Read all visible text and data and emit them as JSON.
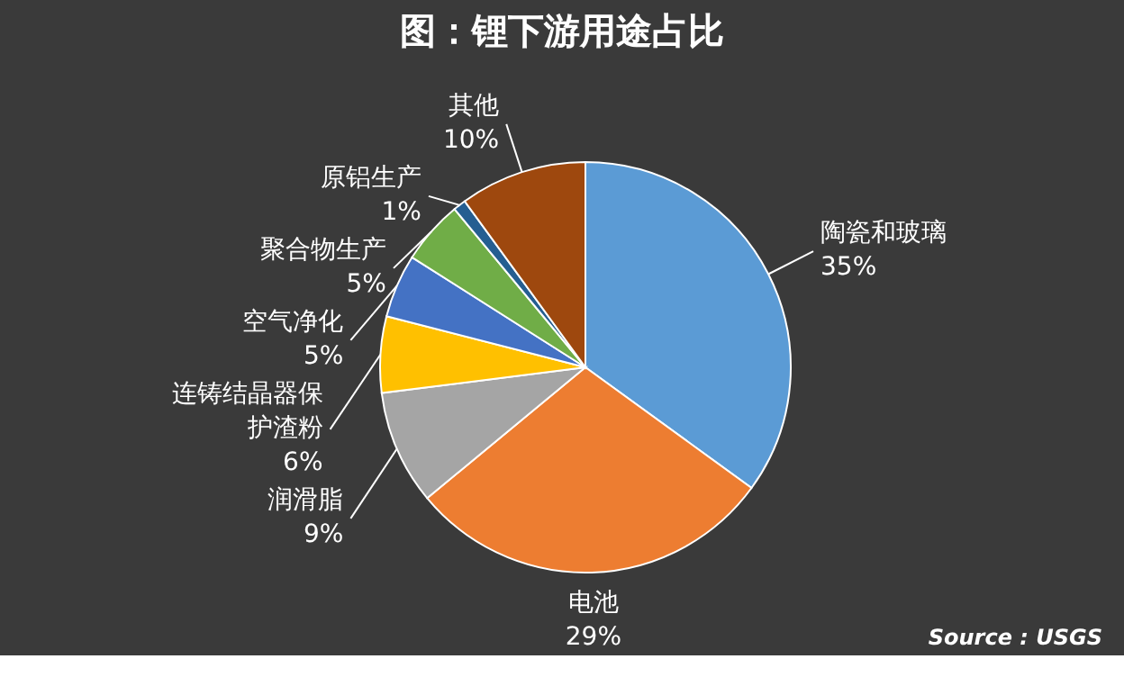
{
  "chart_data": {
    "type": "pie",
    "title": "图：锂下游用途占比",
    "categories": [
      "陶瓷和玻璃",
      "电池",
      "润滑脂",
      "连铸结晶器保护渣粉",
      "空气净化",
      "聚合物生产",
      "原铝生产",
      "其他"
    ],
    "values": [
      35,
      29,
      9,
      6,
      5,
      5,
      1,
      10
    ],
    "value_labels": [
      "35%",
      "29%",
      "9%",
      "6%",
      "5%",
      "5%",
      "1%",
      "10%"
    ],
    "colors": [
      "#5b9bd5",
      "#ed7d31",
      "#a5a5a5",
      "#ffc000",
      "#4472c4",
      "#70ad47",
      "#255e91",
      "#9e480e"
    ],
    "legend": false,
    "annotations": [
      "Source : USGS"
    ]
  }
}
